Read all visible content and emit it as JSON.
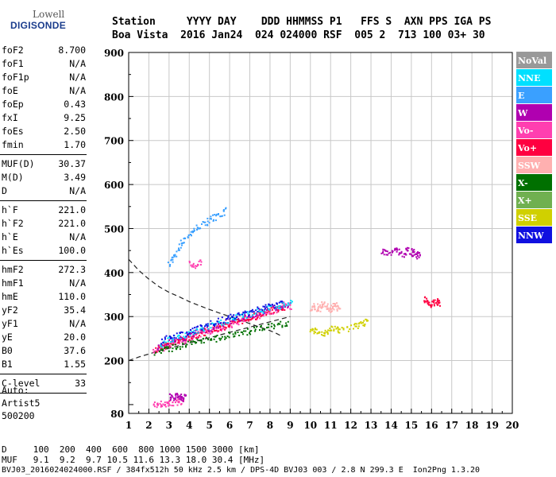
{
  "logo": {
    "line1": "Lowell",
    "line2": "DIGISONDE"
  },
  "header": {
    "line1": "Station     YYYY DAY    DDD HHMMSS P1   FFS S  AXN PPS IGA PS",
    "line2": "Boa Vista  2016 Jan24  024 024000 RSF  005 2  713 100 03+ 30"
  },
  "params": [
    [
      {
        "name": "foF2",
        "value": "8.700"
      },
      {
        "name": "foF1",
        "value": "N/A"
      },
      {
        "name": "foF1p",
        "value": "N/A"
      },
      {
        "name": "foE",
        "value": "N/A"
      },
      {
        "name": "foEp",
        "value": "0.43"
      },
      {
        "name": "fxI",
        "value": "9.25"
      },
      {
        "name": "foEs",
        "value": "2.50"
      },
      {
        "name": "fmin",
        "value": "1.70"
      }
    ],
    [
      {
        "name": "MUF(D)",
        "value": "30.37"
      },
      {
        "name": "M(D)",
        "value": "3.49"
      },
      {
        "name": "D",
        "value": "N/A"
      }
    ],
    [
      {
        "name": "h`F",
        "value": "221.0"
      },
      {
        "name": "h`F2",
        "value": "221.0"
      },
      {
        "name": "h`E",
        "value": "N/A"
      },
      {
        "name": "h`Es",
        "value": "100.0"
      }
    ],
    [
      {
        "name": "hmF2",
        "value": "272.3"
      },
      {
        "name": "hmF1",
        "value": "N/A"
      },
      {
        "name": "hmE",
        "value": "110.0"
      },
      {
        "name": "yF2",
        "value": "35.4"
      },
      {
        "name": "yF1",
        "value": "N/A"
      },
      {
        "name": "yE",
        "value": "20.0"
      },
      {
        "name": "B0",
        "value": "37.6"
      },
      {
        "name": "B1",
        "value": "1.55"
      }
    ],
    [
      {
        "name": "C-level",
        "value": "33"
      }
    ]
  ],
  "autoscale": {
    "line1": "Auto:",
    "line2": "Artist5",
    "line3": "500200"
  },
  "bottom": {
    "d_line": "D     100  200  400  600  800 1000 1500 3000 [km]",
    "muf_line": "MUF   9.1  9.2  9.7 10.5 11.6 13.3 18.0 30.4 [MHz]",
    "footer": "BVJ03_2016024024000.RSF / 384fx512h 50 kHz 2.5 km / DPS-4D BVJ03 003 / 2.8 N 299.3 E  Ion2Png 1.3.20"
  },
  "chart_data": {
    "type": "scatter",
    "xlabel": "",
    "ylabel": "",
    "xlim": [
      1,
      20
    ],
    "ylim": [
      80,
      900
    ],
    "x_ticks": [
      1,
      2,
      3,
      4,
      5,
      6,
      7,
      8,
      9,
      10,
      11,
      12,
      13,
      14,
      15,
      16,
      17,
      18,
      19,
      20
    ],
    "y_ticks": [
      200,
      300,
      400,
      500,
      600,
      700,
      800,
      900
    ],
    "grid": true,
    "legend_position": "right",
    "legend": [
      {
        "label": "NoVal",
        "color": "#999999"
      },
      {
        "label": "NNE",
        "color": "#00e0ff"
      },
      {
        "label": "E",
        "color": "#3aa0ff"
      },
      {
        "label": "W",
        "color": "#b000b0"
      },
      {
        "label": "Vo-",
        "color": "#ff3fb0"
      },
      {
        "label": "Vo+",
        "color": "#ff0040"
      },
      {
        "label": "SSW",
        "color": "#ffb0b0"
      },
      {
        "label": "X-",
        "color": "#007000"
      },
      {
        "label": "X+",
        "color": "#70b050"
      },
      {
        "label": "SSE",
        "color": "#d0d000"
      },
      {
        "label": "NNW",
        "color": "#1010e0"
      }
    ],
    "curves": [
      {
        "name": "",
        "style": "dashed",
        "x": [
          1.0,
          1.5,
          2.0,
          2.5,
          3.0,
          3.5,
          4.0,
          4.5,
          5.0,
          5.5,
          6.0,
          6.5,
          7.0,
          7.5,
          8.0,
          8.3,
          8.6
        ],
        "y": [
          430,
          405,
          385,
          368,
          355,
          345,
          334,
          325,
          316,
          308,
          300,
          292,
          284,
          276,
          268,
          262,
          255
        ]
      },
      {
        "name": "",
        "style": "dashed",
        "x": [
          1.0,
          1.5,
          2.0,
          2.5,
          3.0,
          3.5,
          4.0,
          4.5,
          5.0,
          5.5,
          6.0,
          6.5,
          7.0,
          7.5,
          8.0,
          8.5,
          9.0
        ],
        "y": [
          200,
          208,
          215,
          222,
          228,
          234,
          240,
          246,
          252,
          258,
          264,
          270,
          276,
          282,
          288,
          294,
          300
        ]
      }
    ],
    "traces": [
      {
        "color": "#ff3fb0",
        "x": [
          2.2,
          2.6,
          3.0,
          3.4,
          3.8,
          4.2,
          4.6,
          5.0,
          5.4,
          5.8,
          6.2,
          6.6,
          7.0,
          7.4,
          7.8,
          8.2,
          8.6,
          9.0
        ],
        "y": [
          222,
          230,
          238,
          244,
          250,
          256,
          262,
          268,
          274,
          280,
          286,
          292,
          298,
          304,
          310,
          316,
          322,
          326
        ]
      },
      {
        "color": "#ff0040",
        "x": [
          2.3,
          2.7,
          3.1,
          3.5,
          3.9,
          4.3,
          4.7,
          5.1,
          5.5,
          5.9,
          6.3,
          6.7,
          7.1,
          7.5,
          7.9,
          8.3,
          8.7
        ],
        "y": [
          226,
          234,
          241,
          247,
          253,
          259,
          265,
          271,
          277,
          283,
          289,
          295,
          301,
          307,
          313,
          318,
          324
        ]
      },
      {
        "color": "#b000b0",
        "x": [
          2.4,
          3.0,
          3.6,
          4.2,
          4.8,
          5.4,
          6.0,
          6.6,
          7.2,
          7.8,
          8.4,
          9.0
        ],
        "y": [
          232,
          244,
          252,
          262,
          272,
          282,
          292,
          300,
          308,
          316,
          324,
          330
        ]
      },
      {
        "color": "#00e0ff",
        "x": [
          2.5,
          3.1,
          3.7,
          4.3,
          4.9,
          5.5,
          6.1,
          6.7,
          7.3,
          7.9,
          8.5,
          9.1
        ],
        "y": [
          238,
          250,
          258,
          268,
          278,
          286,
          296,
          304,
          312,
          320,
          328,
          334
        ]
      },
      {
        "color": "#1010e0",
        "x": [
          2.6,
          3.2,
          3.8,
          4.4,
          5.0,
          5.6,
          6.2,
          6.8,
          7.4,
          8.0,
          8.6
        ],
        "y": [
          246,
          256,
          264,
          274,
          284,
          292,
          302,
          310,
          318,
          326,
          334
        ]
      },
      {
        "color": "#007000",
        "x": [
          2.3,
          2.9,
          3.5,
          4.1,
          4.7,
          5.3,
          5.9,
          6.5,
          7.1,
          7.7,
          8.3,
          8.9
        ],
        "y": [
          220,
          228,
          234,
          240,
          246,
          252,
          258,
          264,
          270,
          276,
          282,
          288
        ]
      },
      {
        "color": "#ffb0b0",
        "x": [
          10.0,
          10.2,
          10.4,
          10.6,
          10.8,
          11.0,
          11.2,
          11.4
        ],
        "y": [
          320,
          325,
          318,
          330,
          322,
          316,
          328,
          320
        ]
      },
      {
        "color": "#d0d000",
        "x": [
          10.0,
          10.3,
          10.6,
          10.9,
          11.2,
          11.5,
          12.2,
          12.5,
          12.8
        ],
        "y": [
          265,
          270,
          262,
          268,
          275,
          270,
          278,
          285,
          290
        ]
      },
      {
        "color": "#b000b0",
        "x": [
          13.5,
          13.8,
          14.2,
          14.5,
          14.8,
          15.0,
          15.2,
          15.4
        ],
        "y": [
          450,
          446,
          455,
          442,
          452,
          448,
          440,
          445
        ]
      },
      {
        "color": "#ff0040",
        "x": [
          15.6,
          15.8,
          16.0,
          16.2,
          16.4
        ],
        "y": [
          340,
          335,
          330,
          338,
          332
        ]
      },
      {
        "color": "#ff3fb0",
        "x": [
          2.2,
          2.5,
          2.8,
          3.1,
          3.4,
          3.7
        ],
        "y": [
          100,
          102,
          104,
          106,
          108,
          110
        ]
      },
      {
        "color": "#b000b0",
        "x": [
          3.0,
          3.2,
          3.4,
          3.6,
          3.8
        ],
        "y": [
          120,
          118,
          122,
          116,
          120
        ]
      },
      {
        "color": "#3aa0ff",
        "x": [
          3.0,
          3.2,
          3.5,
          3.8,
          4.2,
          4.6,
          5.0,
          5.4,
          5.8
        ],
        "y": [
          420,
          440,
          460,
          480,
          500,
          510,
          520,
          530,
          545
        ]
      },
      {
        "color": "#ff3fb0",
        "x": [
          4.0,
          4.3,
          4.6
        ],
        "y": [
          420,
          418,
          424
        ]
      }
    ]
  }
}
